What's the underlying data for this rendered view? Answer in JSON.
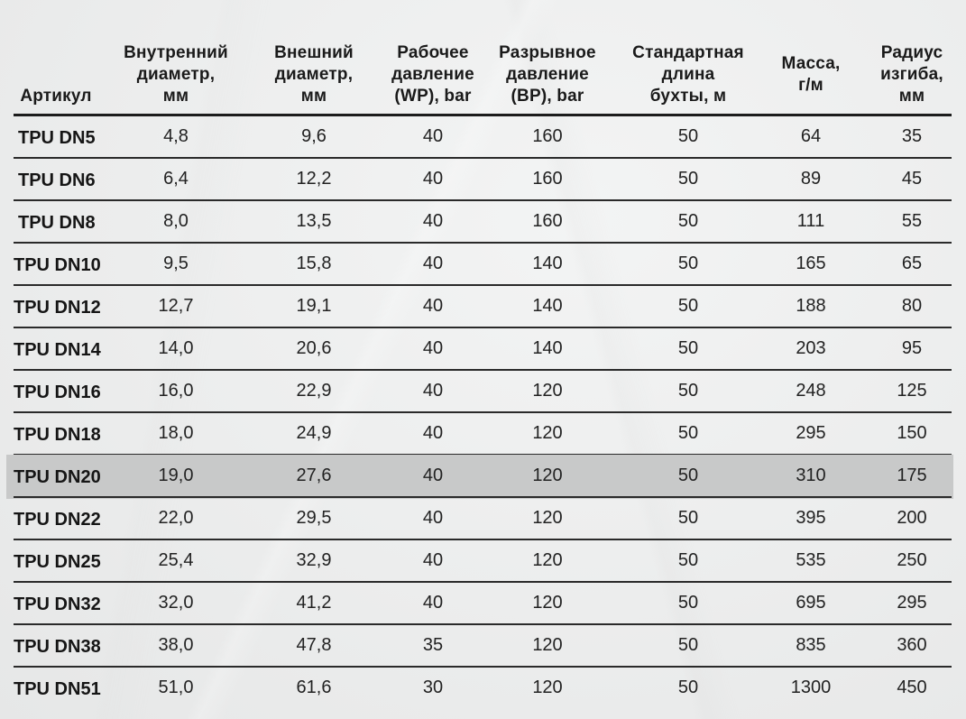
{
  "table": {
    "columns": [
      {
        "key": "sku",
        "label": "Артикул"
      },
      {
        "key": "inner_d",
        "label": "Внутренний диаметр, мм"
      },
      {
        "key": "outer_d",
        "label": "Внешний диаметр, мм"
      },
      {
        "key": "wp",
        "label": "Рабочее давление (WP), bar"
      },
      {
        "key": "bp",
        "label": "Разрывное давление (BP), bar"
      },
      {
        "key": "length",
        "label": "Стандартная длина бухты, м"
      },
      {
        "key": "mass",
        "label": "Масса, г/м"
      },
      {
        "key": "radius",
        "label": "Радиус изгиба, мм"
      }
    ],
    "header_lines": [
      [
        "Артикул"
      ],
      [
        "Внутренний",
        "диаметр,",
        "мм"
      ],
      [
        "Внешний",
        "диаметр,",
        "мм"
      ],
      [
        "Рабочее",
        "давление",
        "(WP), bar"
      ],
      [
        "Разрывное",
        "давление",
        "(BP), bar"
      ],
      [
        "Стандартная",
        "длина",
        "бухты, м"
      ],
      [
        "Масса,",
        "г/м"
      ],
      [
        "Радиус",
        "изгиба,",
        "мм"
      ]
    ],
    "highlight_color": "#c8c9c9",
    "highlighted_row": 8,
    "rows": [
      [
        "TPU DN5",
        "4,8",
        "9,6",
        "40",
        "160",
        "50",
        "64",
        "35"
      ],
      [
        "TPU DN6",
        "6,4",
        "12,2",
        "40",
        "160",
        "50",
        "89",
        "45"
      ],
      [
        "TPU DN8",
        "8,0",
        "13,5",
        "40",
        "160",
        "50",
        "111",
        "55"
      ],
      [
        "TPU DN10",
        "9,5",
        "15,8",
        "40",
        "140",
        "50",
        "165",
        "65"
      ],
      [
        "TPU DN12",
        "12,7",
        "19,1",
        "40",
        "140",
        "50",
        "188",
        "80"
      ],
      [
        "TPU DN14",
        "14,0",
        "20,6",
        "40",
        "140",
        "50",
        "203",
        "95"
      ],
      [
        "TPU DN16",
        "16,0",
        "22,9",
        "40",
        "120",
        "50",
        "248",
        "125"
      ],
      [
        "TPU DN18",
        "18,0",
        "24,9",
        "40",
        "120",
        "50",
        "295",
        "150"
      ],
      [
        "TPU DN20",
        "19,0",
        "27,6",
        "40",
        "120",
        "50",
        "310",
        "175"
      ],
      [
        "TPU DN22",
        "22,0",
        "29,5",
        "40",
        "120",
        "50",
        "395",
        "200"
      ],
      [
        "TPU DN25",
        "25,4",
        "32,9",
        "40",
        "120",
        "50",
        "535",
        "250"
      ],
      [
        "TPU DN32",
        "32,0",
        "41,2",
        "40",
        "120",
        "50",
        "695",
        "295"
      ],
      [
        "TPU DN38",
        "38,0",
        "47,8",
        "35",
        "120",
        "50",
        "835",
        "360"
      ],
      [
        "TPU DN51",
        "51,0",
        "61,6",
        "30",
        "120",
        "50",
        "1300",
        "450"
      ]
    ]
  }
}
